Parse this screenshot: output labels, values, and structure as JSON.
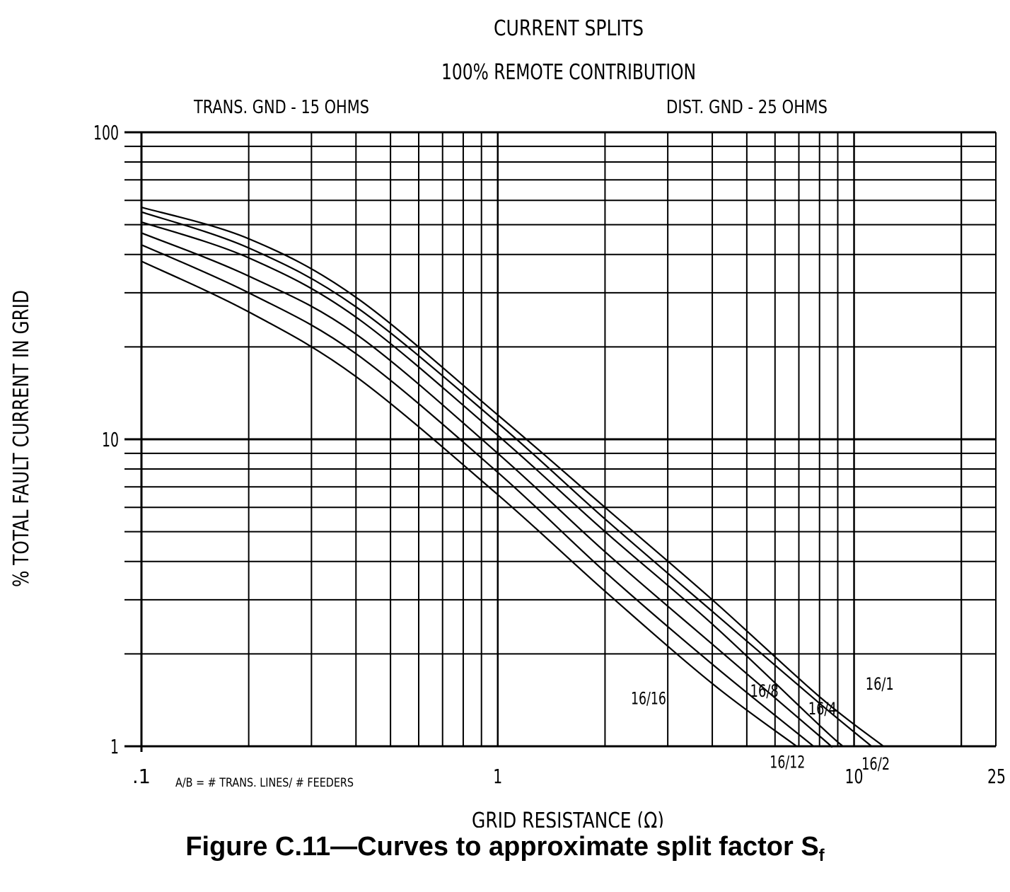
{
  "chart_data": {
    "type": "line",
    "title": "CURRENT SPLITS",
    "subtitle": "100% REMOTE CONTRIBUTION",
    "left_note": "TRANS. GND - 15 OHMS",
    "right_note": "DIST. GND - 25 OHMS",
    "xlabel": "GRID RESISTANCE (Ω)",
    "ylabel": "% TOTAL FAULT CURRENT IN GRID",
    "x_scale": "log",
    "y_scale": "log",
    "xlim": [
      0.1,
      25
    ],
    "ylim": [
      1,
      100
    ],
    "grid": true,
    "x_ticks": [
      {
        "value": 0.1,
        "label": ".1"
      },
      {
        "value": 1,
        "label": "1"
      },
      {
        "value": 10,
        "label": "10"
      },
      {
        "value": 25,
        "label": "25"
      }
    ],
    "y_ticks": [
      {
        "value": 1,
        "label": "1"
      },
      {
        "value": 10,
        "label": "10"
      },
      {
        "value": 100,
        "label": "100"
      }
    ],
    "legend_note": "A/B = # TRANS. LINES/ # FEEDERS",
    "series": [
      {
        "name": "16/1",
        "x": [
          0.1,
          0.2,
          0.4,
          1,
          2,
          4,
          8,
          12.1
        ],
        "y": [
          57,
          45,
          29,
          12,
          6.0,
          3.0,
          1.45,
          1.0
        ]
      },
      {
        "name": "16/2",
        "x": [
          0.1,
          0.2,
          0.4,
          1,
          2,
          4,
          8,
          11.2
        ],
        "y": [
          55,
          42,
          27,
          11.3,
          5.5,
          2.75,
          1.38,
          1.0
        ]
      },
      {
        "name": "16/4",
        "x": [
          0.1,
          0.2,
          0.4,
          1,
          2,
          4,
          8,
          9.3
        ],
        "y": [
          51,
          39,
          25,
          10.3,
          5.0,
          2.5,
          1.17,
          1.0
        ]
      },
      {
        "name": "16/8",
        "x": [
          0.1,
          0.2,
          0.4,
          1,
          2,
          4,
          8,
          8.6
        ],
        "y": [
          47,
          34,
          22,
          9.0,
          4.3,
          2.15,
          1.08,
          1.0
        ]
      },
      {
        "name": "16/12",
        "x": [
          0.1,
          0.2,
          0.4,
          1,
          2,
          4,
          7.7
        ],
        "y": [
          43,
          30,
          19,
          7.8,
          3.7,
          1.85,
          1.0
        ]
      },
      {
        "name": "16/16",
        "x": [
          0.1,
          0.2,
          0.4,
          1,
          2,
          4,
          6.9
        ],
        "y": [
          38,
          26,
          16,
          6.6,
          3.2,
          1.6,
          1.0
        ]
      }
    ],
    "curve_labels": [
      {
        "text": "16/16",
        "x": 2.65,
        "y": 1.37
      },
      {
        "text": "16/8",
        "x": 5.6,
        "y": 1.45
      },
      {
        "text": "16/4",
        "x": 8.15,
        "y": 1.27
      },
      {
        "text": "16/1",
        "x": 11.8,
        "y": 1.53
      },
      {
        "text": "16/12",
        "x": 6.5,
        "y": 0.85
      },
      {
        "text": "16/2",
        "x": 11.5,
        "y": 0.84
      }
    ]
  },
  "caption": {
    "text": "Figure C.11—Curves to approximate split factor S",
    "subscript": "f"
  }
}
